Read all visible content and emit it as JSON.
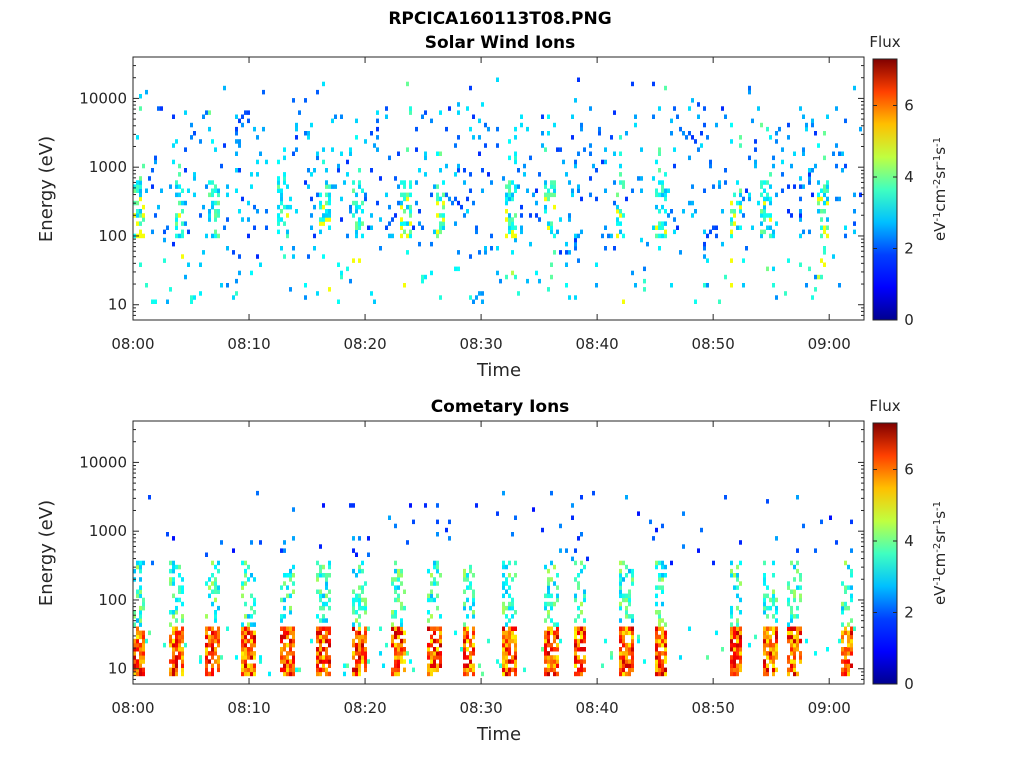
{
  "figure": {
    "title": "RPCICA160113T08.PNG"
  },
  "colormap": {
    "name": "jet",
    "stops": [
      "#00008F",
      "#0000FF",
      "#0080FF",
      "#00FFFF",
      "#80FF80",
      "#FFFF00",
      "#FF8000",
      "#FF0000",
      "#800000"
    ]
  },
  "chart_data": [
    {
      "type": "heatmap",
      "title": "Solar Wind Ions",
      "xlabel": "Time",
      "ylabel": "Energy (eV)",
      "y_scale": "log",
      "xlim": [
        "08:00",
        "09:03"
      ],
      "ylim": [
        6,
        40000
      ],
      "x_ticks": [
        "08:00",
        "08:10",
        "08:20",
        "08:30",
        "08:40",
        "08:50",
        "09:00"
      ],
      "y_ticks": [
        "10",
        "100",
        "1000",
        "10000"
      ],
      "colorbar": {
        "label": "eV-1cm-2sr-1s-1",
        "title": "Flux",
        "range": [
          0,
          7.3
        ],
        "ticks": [
          "0",
          "2",
          "4",
          "6"
        ]
      },
      "grid": false,
      "time_bursts_min": [
        0.5,
        4.0,
        7.0,
        13.0,
        16.5,
        19.5,
        23.5,
        26.5,
        32.5,
        36.0,
        42.0,
        45.5,
        52.0,
        54.5,
        59.5
      ],
      "description_values": {
        "background_flux_range": [
          1.0,
          2.5
        ],
        "low_energy_peak_flux": 4.5,
        "energy_band_dense_eV": [
          100,
          4000
        ]
      }
    },
    {
      "type": "heatmap",
      "title": "Cometary Ions",
      "xlabel": "Time",
      "ylabel": "Energy (eV)",
      "y_scale": "log",
      "xlim": [
        "08:00",
        "09:03"
      ],
      "ylim": [
        6,
        40000
      ],
      "x_ticks": [
        "08:00",
        "08:10",
        "08:20",
        "08:30",
        "08:40",
        "08:50",
        "09:00"
      ],
      "y_ticks": [
        "10",
        "100",
        "1000",
        "10000"
      ],
      "colorbar": {
        "label": "eV-1cm-2sr-1s-1",
        "title": "Flux",
        "range": [
          0,
          7.3
        ],
        "ticks": [
          "0",
          "2",
          "4",
          "6"
        ]
      },
      "grid": false,
      "time_bursts_min": [
        0.5,
        3.8,
        6.8,
        10.0,
        13.3,
        16.5,
        19.5,
        22.8,
        26.0,
        29.0,
        32.5,
        36.0,
        38.5,
        42.5,
        45.5,
        52.0,
        55.0,
        57.0,
        61.5
      ],
      "description_values": {
        "peak_energy_eV": 20,
        "peak_flux": 7.0,
        "typical_burst_flux": 5.5
      }
    }
  ]
}
